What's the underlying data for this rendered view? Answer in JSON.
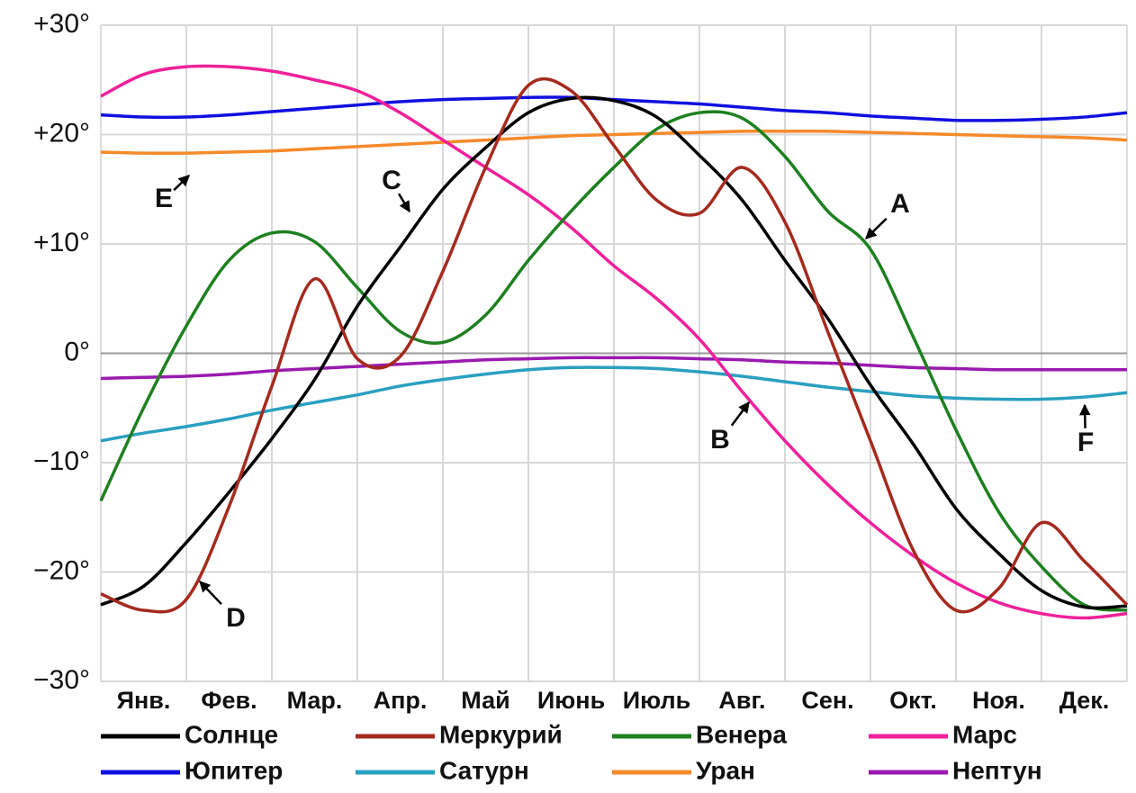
{
  "chart_data": {
    "type": "line",
    "categories": [
      null,
      "Янв.",
      null,
      "Фев.",
      null,
      "Мар.",
      null,
      "Апр.",
      null,
      "Май",
      null,
      "Июнь",
      null,
      "Июль",
      null,
      "Авг.",
      null,
      "Сен.",
      null,
      "Окт.",
      null,
      "Ноя.",
      null,
      "Дек.",
      null
    ],
    "ylim": [
      -30,
      30
    ],
    "yticks": [
      {
        "value": 30,
        "label": "+30°"
      },
      {
        "value": 20,
        "label": "+20°"
      },
      {
        "value": 10,
        "label": "+10°"
      },
      {
        "value": 0,
        "label": "0°"
      },
      {
        "value": -10,
        "label": "−10°"
      },
      {
        "value": -20,
        "label": "−20°"
      },
      {
        "value": -30,
        "label": "−30°"
      }
    ],
    "grid": true,
    "series": [
      {
        "name": "Солнце",
        "color": "#000000",
        "values": [
          -23,
          -21.3,
          -17.3,
          -12.7,
          -7.8,
          -2.4,
          4.3,
          9.7,
          15,
          18.8,
          22,
          23.3,
          23.1,
          21.6,
          18.1,
          14,
          8.5,
          3.2,
          -2.9,
          -8.3,
          -14.2,
          -18.3,
          -21.7,
          -23.2,
          -23.1
        ]
      },
      {
        "name": "Меркурий",
        "color": "#a52a1e",
        "values": [
          -22,
          -23.5,
          -22.5,
          -14,
          -3,
          6.8,
          -0.5,
          -0.3,
          7.5,
          17,
          24.5,
          24,
          19,
          14,
          12.8,
          17,
          12,
          2,
          -8,
          -18,
          -23.5,
          -21.5,
          -15.5,
          -19,
          -23
        ]
      },
      {
        "name": "Венера",
        "color": "#1e8020",
        "values": [
          -13.5,
          -5,
          2.5,
          8.5,
          11,
          10.2,
          6,
          2,
          1,
          3.5,
          8.5,
          13,
          17,
          20.5,
          22,
          21.5,
          18,
          13,
          9.5,
          1.5,
          -7,
          -14.5,
          -19.5,
          -23,
          -23.5
        ]
      },
      {
        "name": "Марс",
        "color": "#f0209a",
        "values": [
          23.5,
          25.5,
          26.2,
          26.2,
          25.8,
          25,
          24,
          22,
          19.5,
          17,
          14.5,
          11.5,
          8,
          5,
          1.3,
          -3.5,
          -8,
          -12,
          -15.5,
          -18.5,
          -21,
          -22.8,
          -23.8,
          -24.2,
          -23.8
        ]
      },
      {
        "name": "Юпитер",
        "color": "#1010e0",
        "values": [
          21.8,
          21.6,
          21.6,
          21.8,
          22.1,
          22.4,
          22.7,
          23,
          23.2,
          23.3,
          23.4,
          23.4,
          23.2,
          23,
          22.8,
          22.5,
          22.2,
          22,
          21.7,
          21.5,
          21.3,
          21.3,
          21.4,
          21.6,
          22
        ]
      },
      {
        "name": "Сатурн",
        "color": "#2aa0c0",
        "values": [
          -8,
          -7.3,
          -6.7,
          -6,
          -5.2,
          -4.5,
          -3.8,
          -3,
          -2.4,
          -1.9,
          -1.5,
          -1.3,
          -1.3,
          -1.4,
          -1.7,
          -2.1,
          -2.6,
          -3.1,
          -3.5,
          -3.9,
          -4.1,
          -4.2,
          -4.2,
          -4,
          -3.6
        ]
      },
      {
        "name": "Уран",
        "color": "#f58a2a",
        "values": [
          18.4,
          18.3,
          18.3,
          18.4,
          18.5,
          18.7,
          18.9,
          19.1,
          19.3,
          19.5,
          19.7,
          19.9,
          20,
          20.1,
          20.2,
          20.3,
          20.3,
          20.3,
          20.2,
          20.1,
          20,
          19.9,
          19.8,
          19.7,
          19.5
        ]
      },
      {
        "name": "Нептун",
        "color": "#9a1ab0",
        "values": [
          -2.3,
          -2.2,
          -2.1,
          -1.9,
          -1.6,
          -1.4,
          -1.2,
          -1,
          -0.8,
          -0.6,
          -0.5,
          -0.4,
          -0.4,
          -0.4,
          -0.5,
          -0.6,
          -0.8,
          -0.9,
          -1.1,
          -1.3,
          -1.4,
          -1.5,
          -1.5,
          -1.5,
          -1.5
        ]
      }
    ],
    "annotations": [
      "A",
      "B",
      "C",
      "D",
      "E",
      "F"
    ]
  }
}
